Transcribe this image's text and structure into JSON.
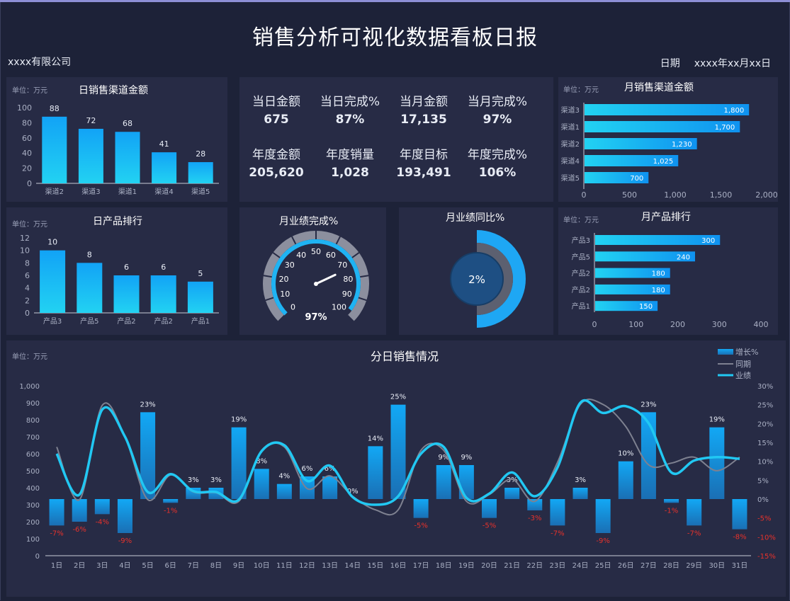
{
  "header": {
    "title": "销售分析可视化数据看板日报",
    "company": "xxxx有限公司",
    "date_label": "日期",
    "date_value": "xxxx年xx月xx日"
  },
  "colors": {
    "bg": "#1d2238",
    "panel": "#272b45",
    "accent": "#12a8f5",
    "accent_light": "#21d3f3",
    "negative": "#e8322b",
    "line_prev": "#7e8190"
  },
  "kpis": [
    {
      "label": "当日金额",
      "value": "675"
    },
    {
      "label": "当日完成%",
      "value": "87%"
    },
    {
      "label": "当月金额",
      "value": "17,135"
    },
    {
      "label": "当月完成%",
      "value": "97%"
    },
    {
      "label": "年度金额",
      "value": "205,620"
    },
    {
      "label": "年度销量",
      "value": "1,028"
    },
    {
      "label": "年度目标",
      "value": "193,491"
    },
    {
      "label": "年度完成%",
      "value": "106%"
    }
  ],
  "units": {
    "wan": "单位：万元"
  },
  "chart_data": [
    {
      "id": "daily_channel",
      "type": "bar",
      "title": "日销售渠道金额",
      "unit": "单位：万元",
      "categories": [
        "渠道2",
        "渠道3",
        "渠道1",
        "渠道4",
        "渠道5"
      ],
      "values": [
        88,
        72,
        68,
        41,
        28
      ],
      "ylim": [
        0,
        100
      ],
      "yticks": [
        "0",
        "20",
        "40",
        "60",
        "80",
        "100"
      ]
    },
    {
      "id": "monthly_channel",
      "type": "bar",
      "orientation": "horizontal",
      "title": "月销售渠道金额",
      "unit": "单位：万元",
      "categories": [
        "渠道3",
        "渠道1",
        "渠道2",
        "渠道4",
        "渠道5"
      ],
      "values": [
        1800,
        1700,
        1230,
        1025,
        700
      ],
      "labels": [
        "1,800",
        "1,700",
        "1,230",
        "1,025",
        "700"
      ],
      "xlim": [
        0,
        2000
      ],
      "xticks": [
        "0",
        "500",
        "1,000",
        "1,500",
        "2,000"
      ]
    },
    {
      "id": "daily_product",
      "type": "bar",
      "title": "日产品排行",
      "unit": "单位：万元",
      "categories": [
        "产品3",
        "产品5",
        "产品2",
        "产品2",
        "产品1"
      ],
      "values": [
        10,
        8,
        6,
        6,
        5
      ],
      "ylim": [
        0,
        12
      ],
      "yticks": [
        "0",
        "2",
        "4",
        "6",
        "8",
        "10",
        "12"
      ]
    },
    {
      "id": "monthly_product",
      "type": "bar",
      "orientation": "horizontal",
      "title": "月产品排行",
      "unit": "单位：万元",
      "categories": [
        "产品3",
        "产品5",
        "产品2",
        "产品2",
        "产品1"
      ],
      "values": [
        300,
        240,
        180,
        180,
        150
      ],
      "labels": [
        "300",
        "240",
        "180",
        "180",
        "150"
      ],
      "xlim": [
        0,
        400
      ],
      "xticks": [
        "0",
        "100",
        "200",
        "300",
        "400"
      ]
    },
    {
      "id": "monthly_completion",
      "type": "gauge",
      "title": "月业绩完成%",
      "value": 97,
      "display": "97%",
      "range": [
        0,
        100
      ],
      "ticks": [
        "0",
        "10",
        "20",
        "30",
        "40",
        "50",
        "60",
        "70",
        "80",
        "90",
        "100"
      ]
    },
    {
      "id": "monthly_yoy",
      "type": "pie",
      "title": "月业绩同比%",
      "value": 2,
      "display": "2%"
    },
    {
      "id": "daily_sales",
      "type": "bar",
      "title": "分日销售情况",
      "unit": "单位：万元",
      "x": [
        "1日",
        "2日",
        "3日",
        "4日",
        "5日",
        "6日",
        "7日",
        "8日",
        "9日",
        "10日",
        "11日",
        "12日",
        "13日",
        "14日",
        "15日",
        "16日",
        "17日",
        "18日",
        "19日",
        "20日",
        "21日",
        "22日",
        "23日",
        "24日",
        "25日",
        "26日",
        "27日",
        "28日",
        "29日",
        "30日",
        "31日"
      ],
      "growth": [
        -7,
        -6,
        -4,
        -9,
        23,
        -1,
        3,
        3,
        19,
        8,
        4,
        6,
        6,
        0,
        14,
        25,
        -5,
        9,
        9,
        -5,
        3,
        -3,
        -7,
        3,
        -9,
        10,
        23,
        -1,
        -7,
        19,
        -8
      ],
      "growth_labels": [
        "-7%",
        "-6%",
        "-4%",
        "-9%",
        "23%",
        "-1%",
        "3%",
        "3%",
        "19%",
        "8%",
        "4%",
        "6%",
        "6%",
        "0%",
        "14%",
        "25%",
        "-5%",
        "9%",
        "9%",
        "-5%",
        "3%",
        "-3%",
        "-7%",
        "3%",
        "-9%",
        "10%",
        "23%",
        "-1%",
        "-7%",
        "19%",
        "-8%"
      ],
      "series": [
        {
          "name": "增长%",
          "axis": "right",
          "color": "#12a8f5"
        },
        {
          "name": "同期",
          "axis": "left",
          "color": "#7e8190",
          "values": [
            640,
            330,
            885,
            700,
            330,
            475,
            375,
            370,
            320,
            620,
            640,
            395,
            470,
            350,
            270,
            270,
            620,
            620,
            320,
            360,
            450,
            320,
            550,
            890,
            890,
            760,
            535,
            545,
            580,
            500,
            580
          ]
        },
        {
          "name": "业绩",
          "axis": "left",
          "color": "#21c8f3",
          "values": [
            600,
            360,
            860,
            700,
            375,
            480,
            380,
            375,
            330,
            615,
            650,
            440,
            530,
            345,
            300,
            350,
            600,
            640,
            340,
            365,
            490,
            350,
            520,
            900,
            840,
            880,
            780,
            490,
            560,
            580,
            570
          ]
        }
      ],
      "ylim_left": [
        0,
        1000
      ],
      "ylim_right": [
        -15,
        30
      ],
      "yticks_left": [
        "0",
        "100",
        "200",
        "300",
        "400",
        "500",
        "600",
        "700",
        "800",
        "900",
        "1,000"
      ],
      "yticks_right": [
        "-15%",
        "-10%",
        "-5%",
        "0%",
        "5%",
        "10%",
        "15%",
        "20%",
        "25%",
        "30%"
      ]
    }
  ]
}
